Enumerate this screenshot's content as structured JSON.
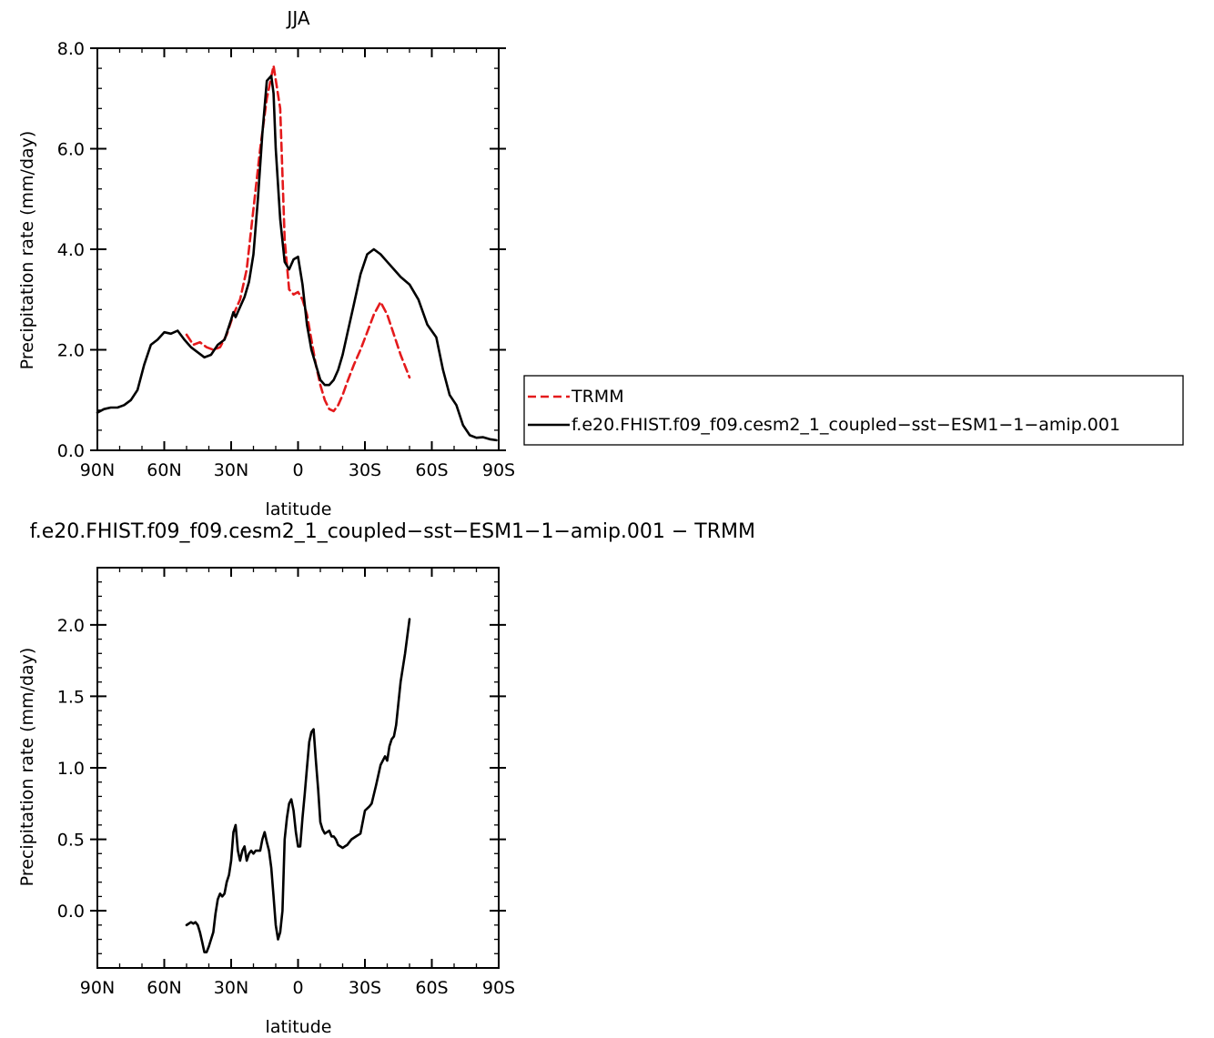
{
  "chart_data": [
    {
      "type": "line",
      "title": "JJA",
      "xlabel": "latitude",
      "ylabel": "Precipitation rate (mm/day)",
      "xlim": [
        90,
        -90
      ],
      "ylim": [
        0,
        8
      ],
      "xticks": [
        90,
        60,
        30,
        0,
        -30,
        -60,
        -90
      ],
      "xtick_labels": [
        "90N",
        "60N",
        "30N",
        "0",
        "30S",
        "60S",
        "90S"
      ],
      "yticks": [
        0,
        2,
        4,
        6,
        8
      ],
      "ytick_labels": [
        "0.0",
        "2.0",
        "4.0",
        "6.0",
        "8.0"
      ],
      "legend_position": "right",
      "series": [
        {
          "name": "TRMM",
          "color": "#e41a1c",
          "dash": "dashed",
          "x": [
            50,
            47,
            44,
            41,
            38,
            35,
            32,
            29,
            26,
            23,
            20,
            17,
            14,
            11,
            8,
            6,
            4,
            2,
            0,
            -2,
            -4,
            -6,
            -8,
            -10,
            -12,
            -14,
            -16,
            -18,
            -20,
            -22,
            -25,
            -28,
            -31,
            -34,
            -37,
            -40,
            -43,
            -46,
            -50
          ],
          "y": [
            2.3,
            2.1,
            2.15,
            2.05,
            2.0,
            2.05,
            2.3,
            2.7,
            3.0,
            3.6,
            4.8,
            6.0,
            7.0,
            7.65,
            6.8,
            4.2,
            3.2,
            3.1,
            3.15,
            3.0,
            2.7,
            2.2,
            1.7,
            1.3,
            1.0,
            0.82,
            0.78,
            0.9,
            1.1,
            1.35,
            1.7,
            2.0,
            2.35,
            2.7,
            2.95,
            2.7,
            2.3,
            1.9,
            1.45
          ]
        },
        {
          "name": "f.e20.FHIST.f09_f09.cesm2_1_coupled−sst−ESM1−1−amip.001",
          "color": "#000000",
          "dash": "solid",
          "x": [
            90,
            87,
            84,
            81,
            78,
            75,
            72,
            69,
            66,
            63,
            60,
            57,
            54,
            51,
            48,
            45,
            42,
            39,
            36,
            33,
            30,
            29,
            28,
            26,
            24,
            22,
            20,
            18,
            16,
            14,
            12,
            11,
            10,
            8,
            6,
            4,
            2,
            0,
            -2,
            -4,
            -6,
            -8,
            -10,
            -12,
            -14,
            -16,
            -18,
            -20,
            -22,
            -25,
            -28,
            -31,
            -34,
            -37,
            -40,
            -43,
            -46,
            -50,
            -54,
            -58,
            -62,
            -65,
            -68,
            -71,
            -74,
            -77,
            -80,
            -83,
            -86,
            -89
          ],
          "y": [
            0.75,
            0.82,
            0.85,
            0.85,
            0.9,
            1.0,
            1.2,
            1.7,
            2.1,
            2.2,
            2.35,
            2.32,
            2.38,
            2.2,
            2.05,
            1.95,
            1.85,
            1.9,
            2.1,
            2.2,
            2.6,
            2.75,
            2.65,
            2.85,
            3.05,
            3.35,
            3.9,
            5.0,
            6.3,
            7.35,
            7.45,
            7.1,
            6.0,
            4.6,
            3.75,
            3.6,
            3.8,
            3.85,
            3.3,
            2.5,
            2.0,
            1.7,
            1.4,
            1.3,
            1.3,
            1.4,
            1.6,
            1.9,
            2.3,
            2.9,
            3.5,
            3.9,
            4.0,
            3.9,
            3.75,
            3.6,
            3.45,
            3.3,
            3.0,
            2.5,
            2.25,
            1.6,
            1.1,
            0.9,
            0.5,
            0.3,
            0.25,
            0.26,
            0.22,
            0.2
          ]
        }
      ]
    },
    {
      "type": "line",
      "title": "f.e20.FHIST.f09_f09.cesm2_1_coupled−sst−ESM1−1−amip.001 − TRMM",
      "xlabel": "latitude",
      "ylabel": "Precipitation rate (mm/day)",
      "xlim": [
        90,
        -90
      ],
      "ylim": [
        -0.4,
        2.4
      ],
      "xticks": [
        90,
        60,
        30,
        0,
        -30,
        -60,
        -90
      ],
      "xtick_labels": [
        "90N",
        "60N",
        "30N",
        "0",
        "30S",
        "60S",
        "90S"
      ],
      "yticks": [
        0.0,
        0.5,
        1.0,
        1.5,
        2.0
      ],
      "ytick_labels": [
        "0.0",
        "0.5",
        "1.0",
        "1.5",
        "2.0"
      ],
      "series": [
        {
          "color": "#000000",
          "dash": "solid",
          "x": [
            50,
            48,
            47,
            46,
            45,
            44,
            43,
            42,
            41,
            40,
            39,
            38,
            37,
            36,
            35,
            34,
            33,
            32,
            31,
            30,
            29,
            28,
            27,
            26,
            25,
            24,
            23,
            22,
            21,
            20,
            19,
            18,
            17,
            16,
            15,
            14,
            13,
            12,
            11,
            10,
            9,
            8,
            7,
            6,
            5,
            4,
            3,
            2,
            1,
            0,
            -1,
            -2,
            -3,
            -4,
            -5,
            -6,
            -7,
            -8,
            -9,
            -10,
            -11,
            -12,
            -13,
            -14,
            -15,
            -16,
            -17,
            -18,
            -19,
            -20,
            -21,
            -22,
            -23,
            -24,
            -26,
            -28,
            -30,
            -32,
            -33,
            -35,
            -37,
            -39,
            -40,
            -41,
            -42,
            -43,
            -44,
            -46,
            -48,
            -50
          ],
          "y": [
            -0.1,
            -0.08,
            -0.09,
            -0.08,
            -0.1,
            -0.15,
            -0.22,
            -0.29,
            -0.29,
            -0.25,
            -0.2,
            -0.15,
            -0.02,
            0.08,
            0.12,
            0.1,
            0.12,
            0.2,
            0.25,
            0.35,
            0.55,
            0.6,
            0.42,
            0.35,
            0.42,
            0.45,
            0.35,
            0.4,
            0.42,
            0.4,
            0.42,
            0.42,
            0.42,
            0.5,
            0.55,
            0.48,
            0.42,
            0.3,
            0.1,
            -0.1,
            -0.2,
            -0.15,
            0.0,
            0.5,
            0.65,
            0.75,
            0.78,
            0.7,
            0.55,
            0.45,
            0.45,
            0.65,
            0.82,
            1.0,
            1.18,
            1.25,
            1.27,
            1.05,
            0.85,
            0.62,
            0.57,
            0.54,
            0.55,
            0.56,
            0.52,
            0.52,
            0.5,
            0.46,
            0.45,
            0.44,
            0.45,
            0.46,
            0.48,
            0.5,
            0.52,
            0.54,
            0.7,
            0.73,
            0.75,
            0.88,
            1.02,
            1.08,
            1.05,
            1.15,
            1.2,
            1.22,
            1.3,
            1.6,
            1.8,
            2.04
          ]
        }
      ]
    }
  ]
}
